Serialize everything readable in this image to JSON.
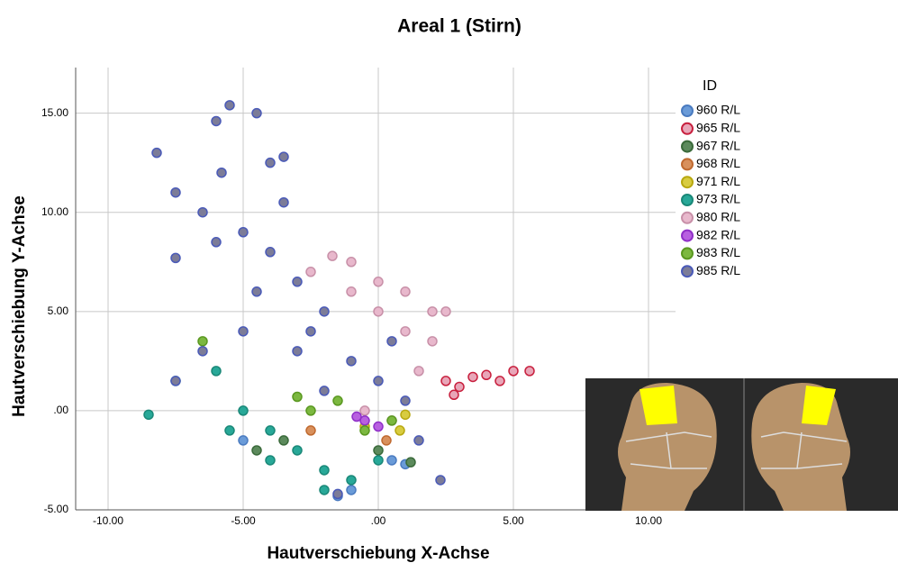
{
  "chart_data": {
    "type": "scatter",
    "title": "Areal 1 (Stirn)",
    "xlabel": "Hautverschiebung X-Achse",
    "ylabel": "Hautverschiebung Y-Achse",
    "legend_title": "ID",
    "legend": "right",
    "grid": true,
    "xlim": [
      -11.2,
      11
    ],
    "ylim": [
      -5,
      17.3
    ],
    "xticks": [
      {
        "value": -10,
        "label": "-10.00"
      },
      {
        "value": -5,
        "label": "-5.00"
      },
      {
        "value": 0,
        "label": ".00"
      },
      {
        "value": 5,
        "label": "5.00"
      },
      {
        "value": 10,
        "label": "10.00"
      }
    ],
    "yticks": [
      {
        "value": -5,
        "label": "-5.00"
      },
      {
        "value": 0,
        "label": ".00"
      },
      {
        "value": 5,
        "label": "5.00"
      },
      {
        "value": 10,
        "label": "10.00"
      },
      {
        "value": 15,
        "label": "15.00"
      }
    ],
    "series": [
      {
        "name": "960 R/L",
        "color": "#6a9bd8",
        "edgecolor": "#4a7bc0",
        "x": [
          -1.5,
          0.5,
          1,
          -5,
          -1
        ],
        "y": [
          -4.3,
          -2.5,
          -2.7,
          -1.5,
          -4
        ]
      },
      {
        "name": "965 R/L",
        "color": "#e8a6b8",
        "edgecolor": "#c8203e",
        "x": [
          2.5,
          3,
          3.5,
          4,
          4.5,
          5,
          5.6,
          2.8
        ],
        "y": [
          1.5,
          1.2,
          1.7,
          1.8,
          1.5,
          2,
          2,
          0.8
        ]
      },
      {
        "name": "967 R/L",
        "color": "#5c8a5c",
        "edgecolor": "#3a6a3a",
        "x": [
          -3.5,
          1.2,
          -4.5,
          0
        ],
        "y": [
          -1.5,
          -2.6,
          -2,
          -2
        ]
      },
      {
        "name": "968 R/L",
        "color": "#d8905c",
        "edgecolor": "#c06a30",
        "x": [
          -2.5,
          0.3
        ],
        "y": [
          -1,
          -1.5
        ]
      },
      {
        "name": "971 R/L",
        "color": "#d8cc40",
        "edgecolor": "#b8a810",
        "x": [
          -0.5,
          1,
          0.8
        ],
        "y": [
          -0.8,
          -0.2,
          -1
        ]
      },
      {
        "name": "973 R/L",
        "color": "#28a898",
        "edgecolor": "#1a8878",
        "x": [
          -6,
          -5,
          -4,
          -3,
          -2,
          -1,
          -5.5,
          -7.5,
          -8.5,
          0,
          -2,
          -4
        ],
        "y": [
          2,
          0,
          -1,
          -2,
          -3,
          -3.5,
          -1,
          1.5,
          -0.2,
          -2.5,
          -4,
          -2.5
        ]
      },
      {
        "name": "980 R/L",
        "color": "#e8b8cc",
        "edgecolor": "#c890a8",
        "x": [
          -2.5,
          -1,
          -1.7,
          0,
          1,
          2,
          2.5,
          1,
          0,
          2,
          1.5,
          -0.5,
          0.5,
          -1
        ],
        "y": [
          7,
          7.5,
          7.8,
          6.5,
          6,
          5,
          5,
          4,
          5,
          3.5,
          2,
          0,
          -0.5,
          6
        ]
      },
      {
        "name": "982 R/L",
        "color": "#b860e0",
        "edgecolor": "#9030c8",
        "x": [
          -0.5,
          -0.8,
          0
        ],
        "y": [
          -0.5,
          -0.3,
          -0.8
        ]
      },
      {
        "name": "983 R/L",
        "color": "#7cb840",
        "edgecolor": "#5a9820",
        "x": [
          -6.5,
          -2.5,
          -1.5,
          -3,
          0.5,
          -0.5
        ],
        "y": [
          3.5,
          0,
          0.5,
          0.7,
          -0.5,
          -1
        ]
      },
      {
        "name": "985 R/L",
        "color": "#7c7c98",
        "edgecolor": "#4a5ab8",
        "x": [
          -8.2,
          -5.5,
          -4.5,
          -6,
          -4,
          -3.5,
          -7.5,
          -6.5,
          -5,
          -7.5,
          -4,
          -3,
          -2,
          -5,
          -3,
          -1,
          0,
          1,
          -2,
          -4.5,
          -6.5,
          1.5,
          2.3,
          -1.5,
          -7.5,
          -3.5,
          -5.8,
          -2.5,
          0.5,
          -6
        ],
        "y": [
          13,
          15.4,
          15,
          14.6,
          12.5,
          12.8,
          11,
          10,
          9,
          7.7,
          8,
          6.5,
          5,
          4,
          3,
          2.5,
          1.5,
          0.5,
          1,
          6,
          3,
          -1.5,
          -3.5,
          -4.2,
          1.5,
          10.5,
          12,
          4,
          3.5,
          8.5
        ]
      }
    ]
  }
}
